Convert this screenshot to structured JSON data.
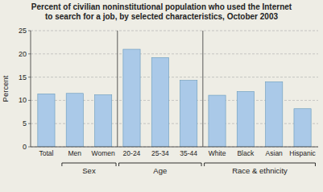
{
  "chart_data": {
    "type": "bar",
    "title": "Percent of civilian noninstitutional population who used the Internet\nto search for a job, by selected characteristics, October 2003",
    "categories": [
      "Total",
      "Men",
      "Women",
      "20-24",
      "25-34",
      "35-44",
      "White",
      "Black",
      "Asian",
      "Hispanic"
    ],
    "values": [
      11.4,
      11.5,
      11.2,
      21.0,
      19.2,
      14.3,
      11.1,
      11.9,
      14.0,
      8.2
    ],
    "color": "#aac9e8",
    "ylabel": "Percent",
    "ylim": [
      0,
      25
    ],
    "yticks": [
      0,
      5,
      10,
      15,
      20,
      25
    ],
    "grid": true,
    "groups": [
      {
        "label": "Sex",
        "categories": [
          "Men",
          "Women"
        ]
      },
      {
        "label": "Age",
        "categories": [
          "20-24",
          "25-34",
          "35-44"
        ]
      },
      {
        "label": "Race & ethnicity",
        "categories": [
          "White",
          "Black",
          "Asian",
          "Hispanic"
        ]
      }
    ]
  }
}
